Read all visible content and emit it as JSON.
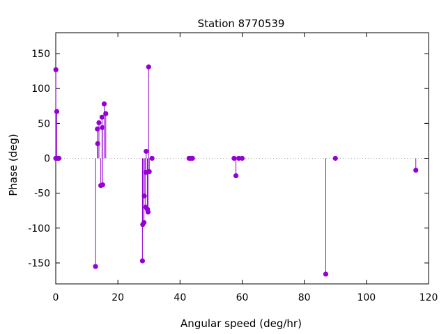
{
  "chart_data": {
    "type": "scatter",
    "style": "impulses-with-points",
    "title": "Station 8770539",
    "xlabel": "Angular speed (deg/hr)",
    "ylabel": "Phase (deg)",
    "xlim": [
      0,
      120
    ],
    "ylim": [
      -180,
      180
    ],
    "xticks": [
      0,
      20,
      40,
      60,
      80,
      100,
      120
    ],
    "yticks": [
      -150,
      -100,
      -50,
      0,
      50,
      100,
      150
    ],
    "zero_line": true,
    "grid": false,
    "legend": "none",
    "series_color": "#9400d3",
    "points": [
      {
        "x": 0.0,
        "y": 0
      },
      {
        "x": 0.04,
        "y": 127
      },
      {
        "x": 0.08,
        "y": 0
      },
      {
        "x": 0.33,
        "y": 0
      },
      {
        "x": 0.33,
        "y": 67
      },
      {
        "x": 0.55,
        "y": 0
      },
      {
        "x": 0.8,
        "y": 0
      },
      {
        "x": 1.0,
        "y": 0
      },
      {
        "x": 12.8,
        "y": -155
      },
      {
        "x": 13.4,
        "y": 42
      },
      {
        "x": 13.5,
        "y": 21
      },
      {
        "x": 13.9,
        "y": 51
      },
      {
        "x": 14.5,
        "y": -39
      },
      {
        "x": 14.9,
        "y": 59
      },
      {
        "x": 15.0,
        "y": 44
      },
      {
        "x": 15.1,
        "y": -38
      },
      {
        "x": 15.6,
        "y": 78
      },
      {
        "x": 16.1,
        "y": 64
      },
      {
        "x": 27.9,
        "y": -147
      },
      {
        "x": 28.0,
        "y": -95
      },
      {
        "x": 28.4,
        "y": -92
      },
      {
        "x": 28.5,
        "y": -54
      },
      {
        "x": 28.9,
        "y": -70
      },
      {
        "x": 29.0,
        "y": -20
      },
      {
        "x": 29.1,
        "y": 10
      },
      {
        "x": 29.5,
        "y": -73
      },
      {
        "x": 29.7,
        "y": -77
      },
      {
        "x": 29.9,
        "y": 131
      },
      {
        "x": 30.1,
        "y": -19
      },
      {
        "x": 31.0,
        "y": 0
      },
      {
        "x": 42.9,
        "y": 0
      },
      {
        "x": 43.5,
        "y": 0
      },
      {
        "x": 44.0,
        "y": 0
      },
      {
        "x": 57.4,
        "y": 0
      },
      {
        "x": 58.0,
        "y": -25
      },
      {
        "x": 58.9,
        "y": 0
      },
      {
        "x": 60.0,
        "y": 0
      },
      {
        "x": 86.9,
        "y": -166
      },
      {
        "x": 90.0,
        "y": 0
      },
      {
        "x": 115.9,
        "y": -17
      }
    ]
  }
}
